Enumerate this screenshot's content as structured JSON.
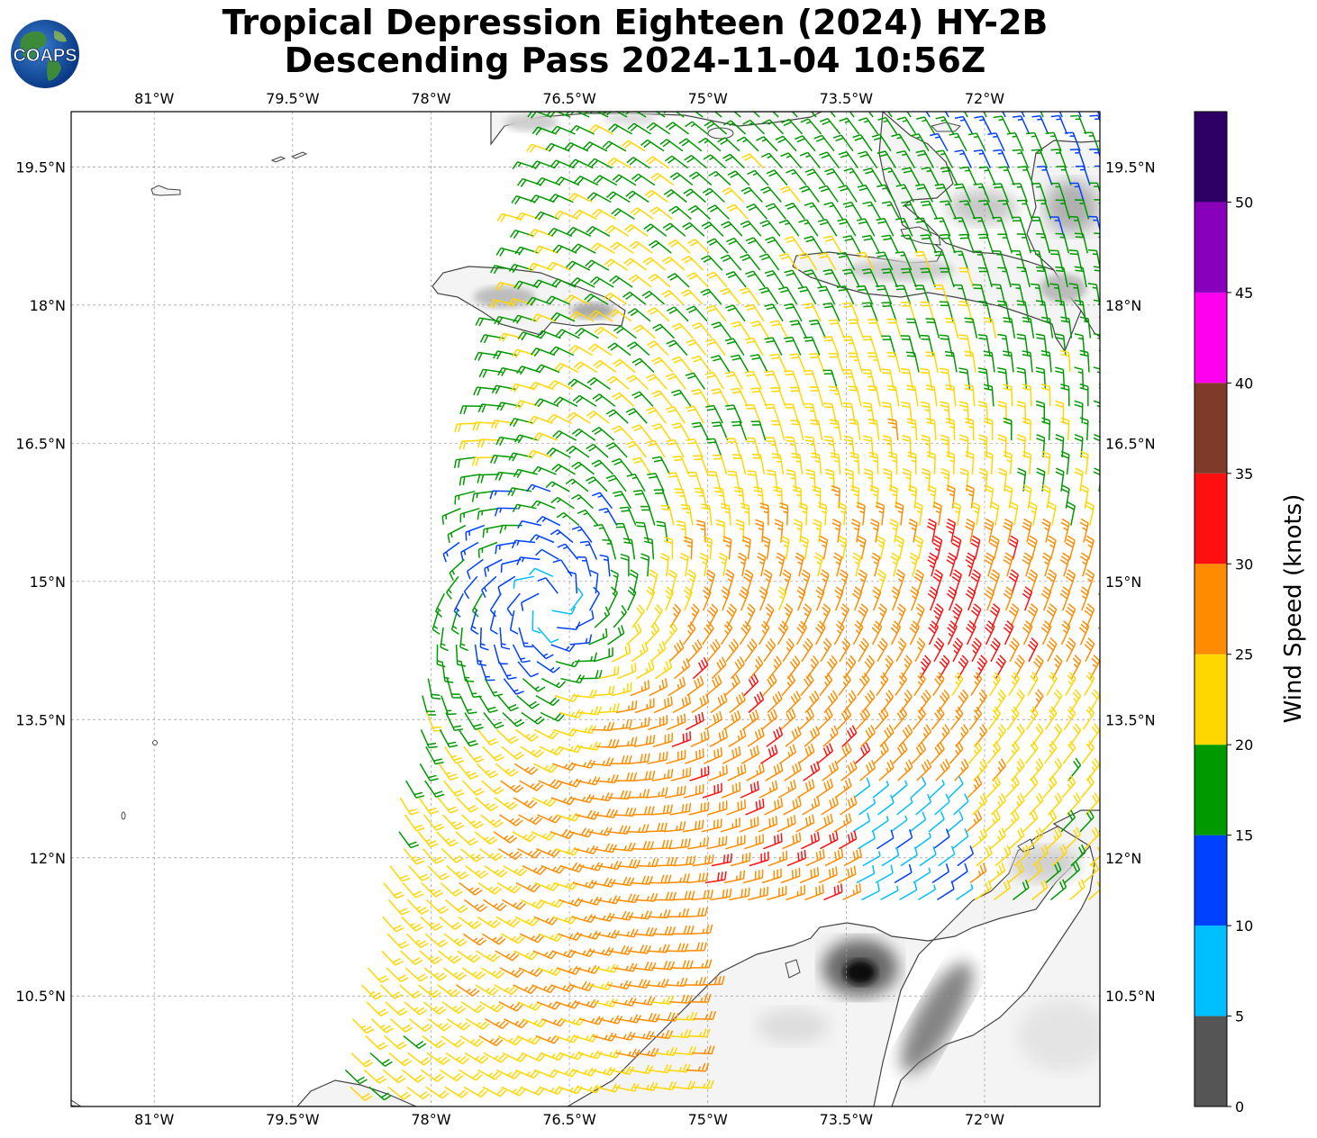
{
  "title": {
    "line1": "Tropical Depression Eighteen (2024) HY-2B",
    "line2": "Descending Pass 2024-11-04 10:56Z"
  },
  "logo": {
    "text": "COAPS"
  },
  "map": {
    "lon_range": [
      -81.9,
      -70.75
    ],
    "lat_range": [
      9.3,
      20.1
    ],
    "lon_ticks": [
      "81°W",
      "79.5°W",
      "78°W",
      "76.5°W",
      "75°W",
      "73.5°W",
      "72°W"
    ],
    "lat_ticks": [
      "19.5°N",
      "18°N",
      "16.5°N",
      "15°N",
      "13.5°N",
      "12°N",
      "10.5°N"
    ],
    "storm_center": {
      "lon": -76.7,
      "lat": 14.75
    }
  },
  "colorbar": {
    "label": "Wind Speed (knots)",
    "ticks": [
      "0",
      "5",
      "10",
      "15",
      "20",
      "25",
      "30",
      "35",
      "40",
      "45",
      "50"
    ],
    "levels": [
      0,
      5,
      10,
      15,
      20,
      25,
      30,
      35,
      40,
      45,
      50,
      55
    ],
    "colors": [
      "#555555",
      "#00bfff",
      "#0040ff",
      "#009900",
      "#ffd700",
      "#ff8c00",
      "#ff1010",
      "#7f3a2a",
      "#ff00ee",
      "#8800bb",
      "#2e0066"
    ]
  }
}
